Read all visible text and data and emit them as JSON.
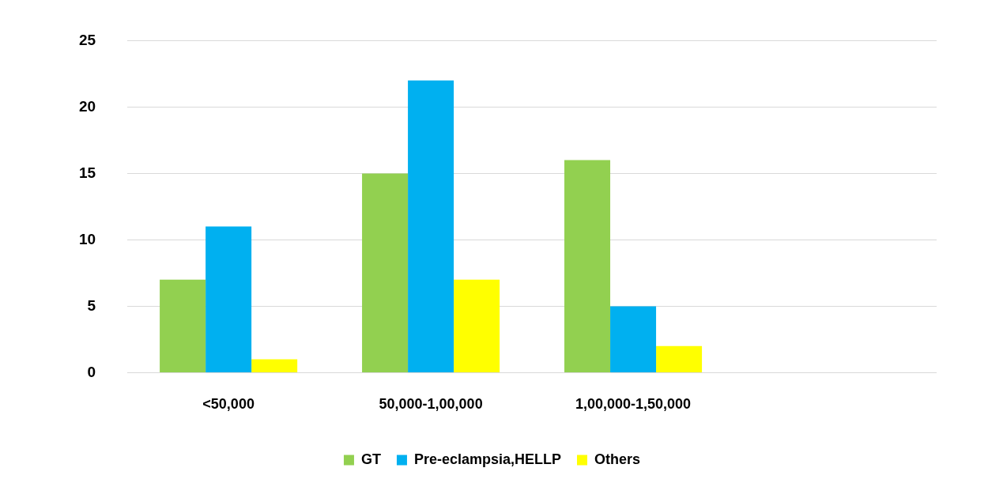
{
  "chart_data": {
    "type": "bar",
    "categories": [
      "<50,000",
      "50,000-1,00,000",
      "1,00,000-1,50,000",
      null
    ],
    "series": [
      {
        "name": "GT",
        "color": "#92d050",
        "values": [
          7,
          15,
          16,
          null
        ]
      },
      {
        "name": "Pre-eclampsia,HELLP",
        "color": "#00b0f0",
        "values": [
          11,
          22,
          5,
          null
        ]
      },
      {
        "name": "Others",
        "color": "#ffff00",
        "values": [
          1,
          7,
          2,
          null
        ]
      }
    ],
    "ylim": [
      0,
      25
    ],
    "yticks": [
      0,
      5,
      10,
      15,
      20,
      25
    ],
    "grid": "y",
    "legend": "bottom"
  }
}
